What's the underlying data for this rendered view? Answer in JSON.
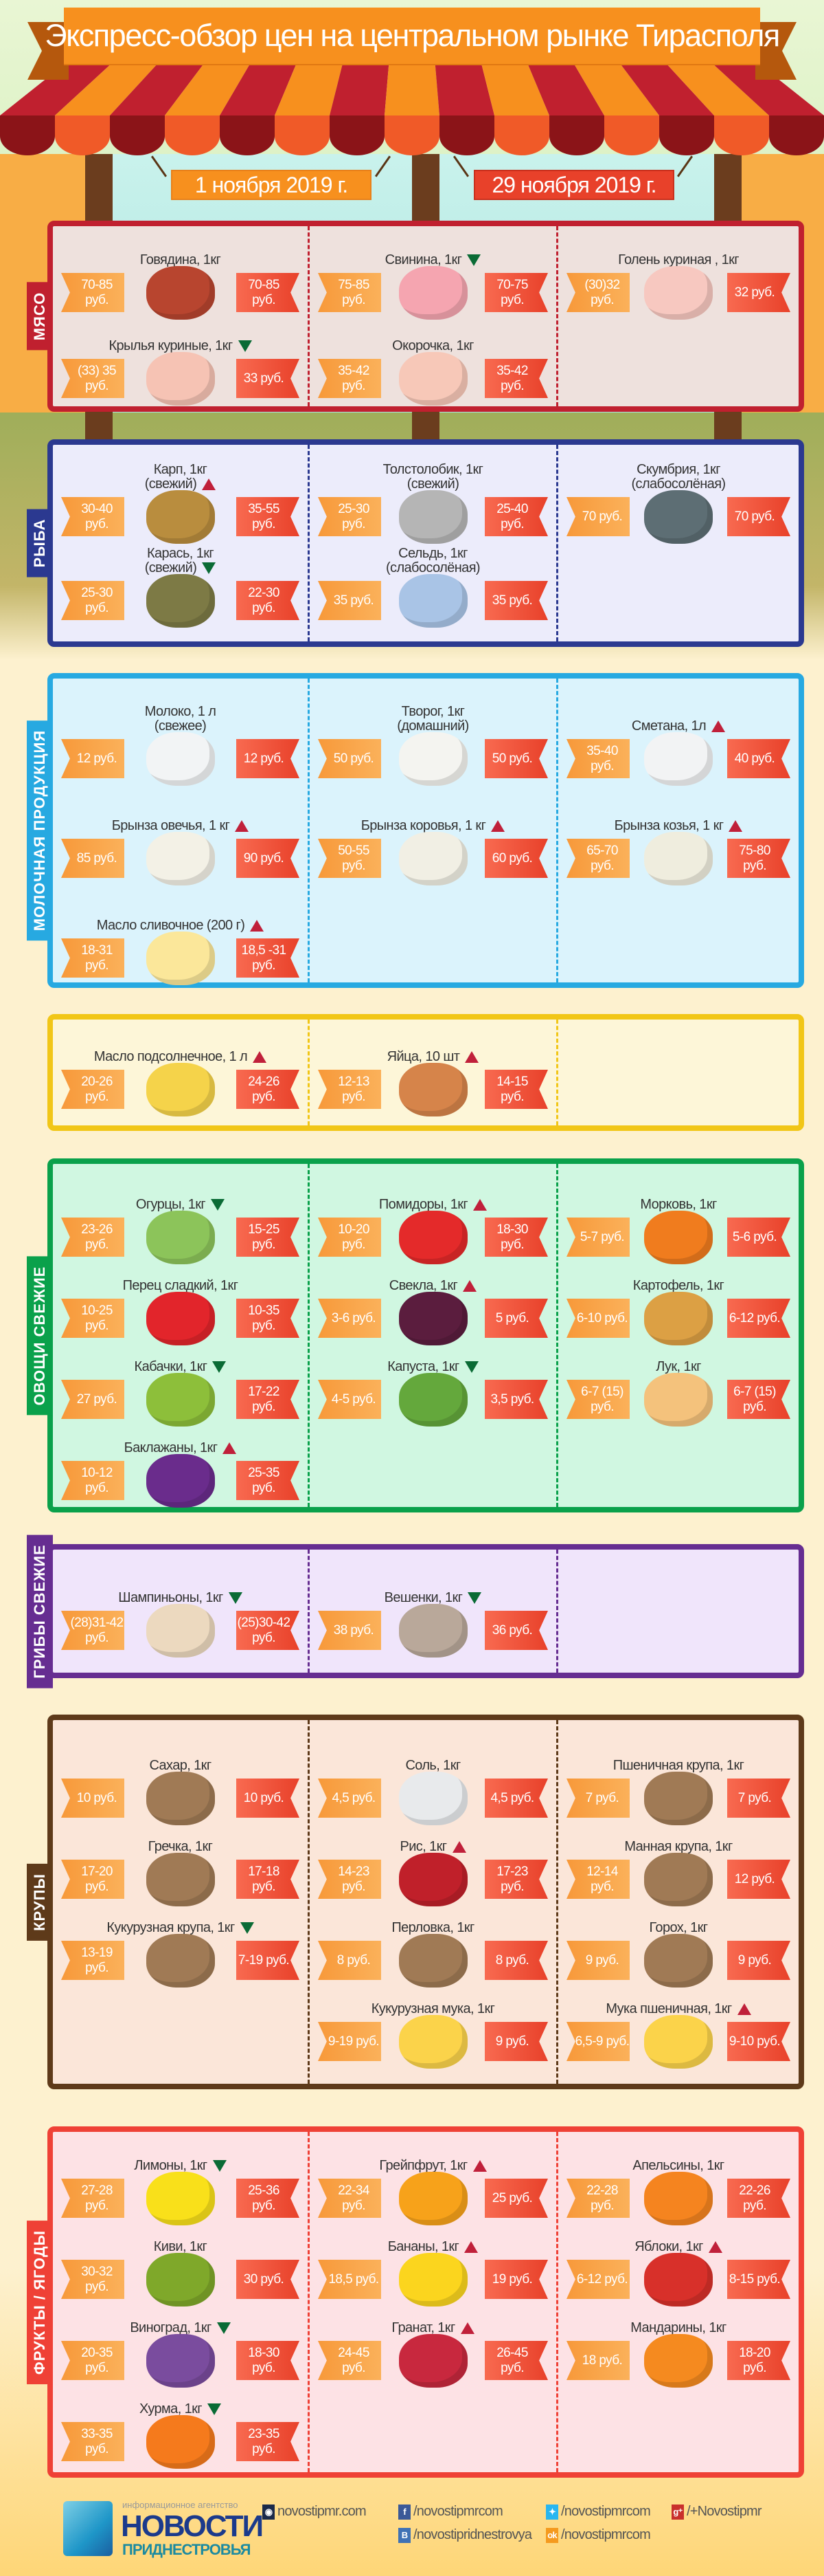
{
  "header": {
    "title": "Экспресс-обзор цен на центральном рынке Тирасполя",
    "date_old": "1 ноября 2019 г.",
    "date_new": "29 ноября 2019 г."
  },
  "colors": {
    "old_price": "#f7993a",
    "new_price": "#e8412a",
    "trend_up": "#c0203a",
    "trend_down": "#0a6b35",
    "banner": "#f7901e"
  },
  "sections": [
    {
      "id": "meat",
      "label": "МЯСО",
      "color": "#c0202f",
      "bg": "#eee1dd",
      "columns": [
        [
          {
            "name": "Говядина, 1кг",
            "trend": null,
            "old": "70-85 руб.",
            "new": "70-85 руб.",
            "icon": "beef-steak-icon",
            "color": "#b8452f"
          },
          {
            "name": "Крылья куриные, 1кг",
            "trend": "down",
            "old": "(33) 35 руб.",
            "new": "33 руб.",
            "icon": "chicken-wing-icon",
            "color": "#f6c3b4"
          }
        ],
        [
          {
            "name": "Свинина, 1кг",
            "trend": "down",
            "old": "75-85 руб.",
            "new": "70-75 руб.",
            "icon": "pork-icon",
            "color": "#f5a5b0"
          },
          {
            "name": "Окорочка, 1кг",
            "trend": null,
            "old": "35-42 руб.",
            "new": "35-42 руб.",
            "icon": "chicken-leg-icon",
            "color": "#f7c8b8"
          }
        ],
        [
          {
            "name": "Голень куриная , 1кг",
            "trend": null,
            "old": "(30)32 руб.",
            "new": "32 руб.",
            "icon": "chicken-drumstick-icon",
            "color": "#f7c8c0"
          }
        ]
      ]
    },
    {
      "id": "fish",
      "label": "РЫБА",
      "color": "#2b3990",
      "bg": "#ececfb",
      "columns": [
        [
          {
            "name": "Карп, 1кг\n(свежий)",
            "trend": "up",
            "old": "30-40 руб.",
            "new": "35-55 руб.",
            "icon": "carp-icon",
            "color": "#b98d3e"
          },
          {
            "name": "Карась, 1кг\n(свежий)",
            "trend": "down",
            "old": "25-30 руб.",
            "new": "22-30 руб.",
            "icon": "crucian-icon",
            "color": "#7d7a45"
          }
        ],
        [
          {
            "name": "Толстолобик, 1кг\n(свежий)",
            "trend": null,
            "old": "25-30 руб.",
            "new": "25-40 руб.",
            "icon": "silver-carp-icon",
            "color": "#b5b5b5"
          },
          {
            "name": "Сельдь, 1кг\n(слабосолёная)",
            "trend": null,
            "old": "35 руб.",
            "new": "35 руб.",
            "icon": "herring-icon",
            "color": "#a9c4e6"
          }
        ],
        [
          {
            "name": "Скумбрия, 1кг\n(слабосолёная)",
            "trend": null,
            "old": "70 руб.",
            "new": "70 руб.",
            "icon": "mackerel-icon",
            "color": "#5d6e74"
          }
        ]
      ]
    },
    {
      "id": "dairy",
      "label": "МОЛОЧНАЯ ПРОДУКЦИЯ",
      "color": "#27a9e1",
      "bg": "#dbf3fc",
      "columns": [
        [
          {
            "name": "Молоко, 1 л\n(свежее)",
            "trend": null,
            "old": "12 руб.",
            "new": "12 руб.",
            "icon": "milk-bottle-icon",
            "color": "#f2f4f5"
          },
          {
            "name": "Брынза овечья, 1 кг",
            "trend": "up",
            "old": "85 руб.",
            "new": "90 руб.",
            "icon": "cheese-icon",
            "color": "#f3f1e6"
          },
          {
            "name": "Масло сливочное (200 г)",
            "trend": "up",
            "old": "18-31 руб.",
            "new": "18,5 -31 руб.",
            "icon": "butter-icon",
            "color": "#fbe79a"
          }
        ],
        [
          {
            "name": "Творог, 1кг\n(домашний)",
            "trend": null,
            "old": "50 руб.",
            "new": "50 руб.",
            "icon": "cottage-cheese-icon",
            "color": "#f4f4f0"
          },
          {
            "name": "Брынза коровья, 1 кг",
            "trend": "up",
            "old": "50-55 руб.",
            "new": "60 руб.",
            "icon": "cheese-icon",
            "color": "#f1efe4"
          }
        ],
        [
          {
            "name": "Сметана, 1л",
            "trend": "up",
            "old": "35-40 руб.",
            "new": "40 руб.",
            "icon": "sour-cream-bottle-icon",
            "color": "#f2f3f4"
          },
          {
            "name": "Брынза козья, 1 кг",
            "trend": "up",
            "old": "65-70 руб.",
            "new": "75-80 руб.",
            "icon": "cheese-icon",
            "color": "#efedde"
          }
        ]
      ]
    },
    {
      "id": "oil",
      "label": "",
      "color": "#f1c617",
      "bg": "#fdf6d8",
      "columns": [
        [
          {
            "name": "Масло подсолнечное, 1 л",
            "trend": "up",
            "old": "20-26 руб.",
            "new": "24-26 руб.",
            "icon": "oil-bottles-icon",
            "color": "#f5d34a"
          }
        ],
        [
          {
            "name": "Яйца, 10 шт",
            "trend": "up",
            "old": "12-13 руб.",
            "new": "14-15 руб.",
            "icon": "eggs-icon",
            "color": "#d6844a"
          }
        ],
        []
      ]
    },
    {
      "id": "vegetables",
      "label": "ОВОЩИ СВЕЖИЕ",
      "color": "#0aa14b",
      "bg": "#d0f7e1",
      "columns": [
        [
          {
            "name": "Огурцы, 1кг",
            "trend": "down",
            "old": "23-26 руб.",
            "new": "15-25 руб.",
            "icon": "cucumber-icon",
            "color": "#8cc45a"
          },
          {
            "name": "Перец сладкий, 1кг",
            "trend": null,
            "old": "10-25 руб.",
            "new": "10-35 руб.",
            "icon": "pepper-icon",
            "color": "#e2252b"
          },
          {
            "name": "Кабачки, 1кг",
            "trend": "down",
            "old": "27 руб.",
            "new": "17-22 руб.",
            "icon": "zucchini-icon",
            "color": "#8dbf3a"
          },
          {
            "name": "Баклажаны, 1кг",
            "trend": "up",
            "old": "10-12 руб.",
            "new": "25-35 руб.",
            "icon": "eggplant-icon",
            "color": "#6a2c8c"
          }
        ],
        [
          {
            "name": "Помидоры, 1кг",
            "trend": "up",
            "old": "10-20 руб.",
            "new": "18-30 руб.",
            "icon": "tomato-icon",
            "color": "#e42a2a"
          },
          {
            "name": "Свекла, 1кг",
            "trend": "up",
            "old": "3-6 руб.",
            "new": "5 руб.",
            "icon": "beet-icon",
            "color": "#5b1d3e"
          },
          {
            "name": "Капуста, 1кг",
            "trend": "down",
            "old": "4-5 руб.",
            "new": "3,5 руб.",
            "icon": "cabbage-icon",
            "color": "#64a83c"
          }
        ],
        [
          {
            "name": "Морковь, 1кг",
            "trend": null,
            "old": "5-7 руб.",
            "new": "5-6 руб.",
            "icon": "carrot-icon",
            "color": "#f07c1e"
          },
          {
            "name": "Картофель, 1кг",
            "trend": null,
            "old": "6-10 руб.",
            "new": "6-12 руб.",
            "icon": "potato-icon",
            "color": "#dca044"
          },
          {
            "name": "Лук, 1кг",
            "trend": null,
            "old": "6-7 (15) руб.",
            "new": "6-7 (15) руб.",
            "icon": "onion-icon",
            "color": "#f4c27c"
          }
        ]
      ]
    },
    {
      "id": "mushrooms",
      "label": "ГРИБЫ СВЕЖИЕ",
      "color": "#662d91",
      "bg": "#f0e5fb",
      "columns": [
        [
          {
            "name": "Шампиньоны, 1кг",
            "trend": "down",
            "old": "(28)31-42 руб.",
            "new": "(25)30-42 руб.",
            "icon": "champignon-icon",
            "color": "#ecd9bf"
          }
        ],
        [
          {
            "name": "Вешенки, 1кг",
            "trend": "down",
            "old": "38 руб.",
            "new": "36 руб.",
            "icon": "oyster-mushroom-icon",
            "color": "#b9a89a"
          }
        ],
        []
      ]
    },
    {
      "id": "grains",
      "label": "КРУПЫ",
      "color": "#5e3a1a",
      "bg": "#fbe6d9",
      "columns": [
        [
          {
            "name": "Сахар, 1кг",
            "trend": null,
            "old": "10 руб.",
            "new": "10 руб.",
            "icon": "sugar-sack-icon",
            "color": "#a07a55"
          },
          {
            "name": "Гречка, 1кг",
            "trend": null,
            "old": "17-20 руб.",
            "new": "17-18 руб.",
            "icon": "buckwheat-sack-icon",
            "color": "#a07a55"
          },
          {
            "name": "Кукурузная крупа, 1кг",
            "trend": "down",
            "old": "13-19 руб.",
            "new": "7-19 руб.",
            "icon": "corn-grits-sack-icon",
            "color": "#a07a55"
          }
        ],
        [
          {
            "name": "Соль, 1кг",
            "trend": null,
            "old": "4,5 руб.",
            "new": "4,5 руб.",
            "icon": "salt-shaker-icon",
            "color": "#e8eaec"
          },
          {
            "name": "Рис, 1кг",
            "trend": "up",
            "old": "14-23 руб.",
            "new": "17-23 руб.",
            "icon": "rice-bowl-icon",
            "color": "#c0202a"
          },
          {
            "name": "Перловка, 1кг",
            "trend": null,
            "old": "8 руб.",
            "new": "8 руб.",
            "icon": "barley-sack-icon",
            "color": "#a07a55"
          },
          {
            "name": "Кукурузная мука, 1кг",
            "trend": null,
            "old": "9-19 руб.",
            "new": "9  руб.",
            "icon": "corn-flour-pack-icon",
            "color": "#fbd34a"
          }
        ],
        [
          {
            "name": "Пшеничная крупа, 1кг",
            "trend": null,
            "old": "7 руб.",
            "new": "7 руб.",
            "icon": "wheat-grits-sack-icon",
            "color": "#a07a55"
          },
          {
            "name": "Манная крупа, 1кг",
            "trend": null,
            "old": "12-14 руб.",
            "new": "12 руб.",
            "icon": "semolina-sack-icon",
            "color": "#a07a55"
          },
          {
            "name": "Горох, 1кг",
            "trend": null,
            "old": "9 руб.",
            "new": "9 руб.",
            "icon": "peas-sack-icon",
            "color": "#a07a55"
          },
          {
            "name": "Мука пшеничная, 1кг",
            "trend": "up",
            "old": "6,5-9 руб.",
            "new": "9-10 руб.",
            "icon": "wheat-flour-pack-icon",
            "color": "#fbd34a"
          }
        ]
      ]
    },
    {
      "id": "fruits",
      "label": "ФРУКТЫ / ЯГОДЫ",
      "color": "#ef4136",
      "bg": "#fde2e5",
      "columns": [
        [
          {
            "name": "Лимоны, 1кг",
            "trend": "down",
            "old": "27-28 руб.",
            "new": "25-36 руб.",
            "icon": "lemon-icon",
            "color": "#f9e01a"
          },
          {
            "name": "Киви, 1кг",
            "trend": null,
            "old": "30-32 руб.",
            "new": "30 руб.",
            "icon": "kiwi-icon",
            "color": "#7fa82a"
          },
          {
            "name": "Виноград, 1кг",
            "trend": "down",
            "old": "20-35 руб.",
            "new": "18-30 руб.",
            "icon": "grapes-icon",
            "color": "#7a4c9e"
          },
          {
            "name": "Хурма, 1кг",
            "trend": "down",
            "old": "33-35 руб.",
            "new": "23-35 руб.",
            "icon": "persimmon-icon",
            "color": "#f57a1c"
          }
        ],
        [
          {
            "name": "Грейпфрут, 1кг",
            "trend": "up",
            "old": "22-34 руб.",
            "new": "25 руб.",
            "icon": "grapefruit-icon",
            "color": "#f7a21a"
          },
          {
            "name": "Бананы, 1кг",
            "trend": "up",
            "old": "18,5 руб.",
            "new": "19 руб.",
            "icon": "banana-icon",
            "color": "#fbd51e"
          },
          {
            "name": "Гранат, 1кг",
            "trend": "up",
            "old": "24-45 руб.",
            "new": "26-45 руб.",
            "icon": "pomegranate-icon",
            "color": "#c8283e"
          }
        ],
        [
          {
            "name": "Апельсины, 1кг",
            "trend": null,
            "old": "22-28 руб.",
            "new": "22-26 руб.",
            "icon": "orange-icon",
            "color": "#f5841f"
          },
          {
            "name": "Яблоки, 1кг",
            "trend": "up",
            "old": "6-12 руб.",
            "new": "8-15 руб.",
            "icon": "apple-icon",
            "color": "#d8302a"
          },
          {
            "name": "Мандарины, 1кг",
            "trend": null,
            "old": "18 руб.",
            "new": "18-20 руб.",
            "icon": "tangerine-icon",
            "color": "#f58a1f"
          }
        ]
      ]
    }
  ],
  "footer": {
    "agency": "информационное агентство",
    "brand_line1": "НОВОСТИ",
    "brand_line2": "ПРИДНЕСТРОВЬЯ",
    "links": [
      {
        "icon": "globe-icon",
        "text": "novostipmr.com",
        "color": "#1b2a4a"
      },
      {
        "icon": "facebook-icon",
        "text": "/novostipmrcom",
        "color": "#3b5998"
      },
      {
        "icon": "twitter-icon",
        "text": "/novostipmrcom",
        "color": "#29b6f0"
      },
      {
        "icon": "google-plus-icon",
        "text": "/+Novostipmr",
        "color": "#c9302c"
      },
      {
        "icon": "vk-icon",
        "text": "/novostipridnestrovya",
        "color": "#3f72b5"
      },
      {
        "icon": "odnoklassniki-icon",
        "text": "/novostipmrcom",
        "color": "#f59a1e"
      }
    ]
  }
}
